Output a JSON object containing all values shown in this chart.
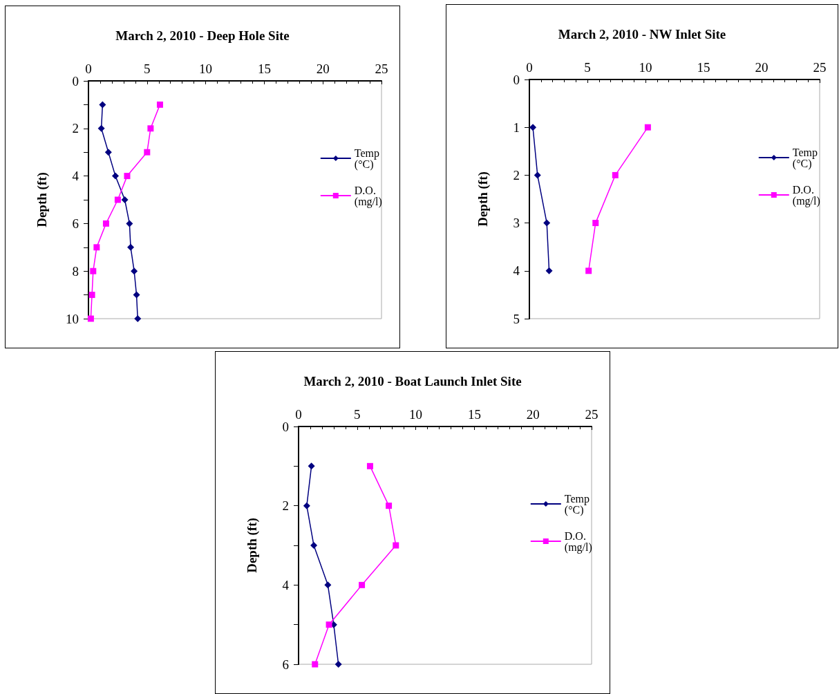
{
  "chart_data": [
    {
      "type": "line",
      "title": "March 2, 2010 - Deep Hole Site",
      "ylabel": "Depth (ft)",
      "xlim": [
        0,
        25
      ],
      "xticks": [
        0,
        5,
        10,
        15,
        20,
        25
      ],
      "ylim": [
        10,
        0
      ],
      "yticks": [
        0,
        {
          "value": 1,
          "label": null
        },
        2,
        {
          "value": 3,
          "label": null
        },
        4,
        {
          "value": 5,
          "label": null
        },
        6,
        {
          "value": 7,
          "label": null
        },
        8,
        {
          "value": 9,
          "label": null
        },
        10
      ],
      "legend": "right",
      "series": [
        {
          "name": "Temp (°C)",
          "color": "#000080",
          "marker": "diamond",
          "x": [
            1.2,
            1.1,
            1.7,
            2.3,
            3.1,
            3.5,
            3.6,
            3.9,
            4.1,
            4.2
          ],
          "values": [
            1,
            2,
            3,
            4,
            5,
            6,
            7,
            8,
            9,
            10
          ]
        },
        {
          "name": "D.O. (mg/l)",
          "color": "#ff00ff",
          "marker": "square",
          "x": [
            6.1,
            5.3,
            5.0,
            3.3,
            2.5,
            1.5,
            0.7,
            0.4,
            0.3,
            0.2
          ],
          "values": [
            1,
            2,
            3,
            4,
            5,
            6,
            7,
            8,
            9,
            10
          ]
        }
      ]
    },
    {
      "type": "line",
      "title": "March 2, 2010 - NW Inlet Site",
      "ylabel": "Depth (ft)",
      "xlim": [
        0,
        25
      ],
      "xticks": [
        0,
        5,
        10,
        15,
        20,
        25
      ],
      "ylim": [
        5,
        0
      ],
      "yticks": [
        0,
        1,
        2,
        3,
        4,
        5
      ],
      "legend": "right",
      "series": [
        {
          "name": "Temp (°C)",
          "color": "#000080",
          "marker": "diamond",
          "x": [
            0.3,
            0.7,
            1.5,
            1.7
          ],
          "values": [
            1,
            2,
            3,
            4
          ]
        },
        {
          "name": "D.O. (mg/l)",
          "color": "#ff00ff",
          "marker": "square",
          "x": [
            10.2,
            7.4,
            5.7,
            5.1
          ],
          "values": [
            1,
            2,
            3,
            4
          ]
        }
      ]
    },
    {
      "type": "line",
      "title": "March 2, 2010 - Boat Launch Inlet Site",
      "ylabel": "Depth (ft)",
      "xlim": [
        0,
        25
      ],
      "xticks": [
        0,
        5,
        10,
        15,
        20,
        25
      ],
      "ylim": [
        6,
        0
      ],
      "yticks": [
        0,
        {
          "value": 1,
          "label": null
        },
        2,
        {
          "value": 3,
          "label": null
        },
        4,
        {
          "value": 5,
          "label": null
        },
        6
      ],
      "legend": "right",
      "series": [
        {
          "name": "Temp (°C)",
          "color": "#000080",
          "marker": "diamond",
          "x": [
            1.1,
            0.7,
            1.3,
            2.5,
            3.0,
            3.4
          ],
          "values": [
            1,
            2,
            3,
            4,
            5,
            6
          ]
        },
        {
          "name": "D.O. (mg/l)",
          "color": "#ff00ff",
          "marker": "square",
          "x": [
            6.1,
            7.7,
            8.3,
            5.4,
            2.6,
            1.4
          ],
          "values": [
            1,
            2,
            3,
            4,
            5,
            6
          ]
        }
      ]
    }
  ]
}
